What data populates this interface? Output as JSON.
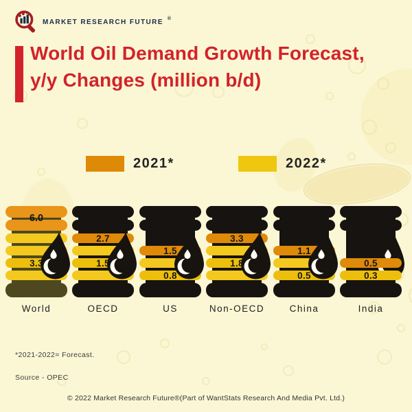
{
  "logo": {
    "brand": "MARKET RESEARCH FUTURE",
    "reg": "®"
  },
  "title": {
    "line1": "World Oil Demand Growth Forecast,",
    "line2": "y/y Changes (million b/d)"
  },
  "legend": [
    {
      "label": "2021*",
      "color": "#DE8A07"
    },
    {
      "label": "2022*",
      "color": "#EFC70E"
    }
  ],
  "chart_data": {
    "type": "bar",
    "title": "World Oil Demand Growth Forecast, y/y Changes (million b/d)",
    "unit": "million b/d",
    "categories": [
      "World",
      "OECD",
      "US",
      "Non-OECD",
      "China",
      "India"
    ],
    "series": [
      {
        "name": "2021*",
        "values": [
          6.0,
          2.7,
          1.5,
          3.3,
          1.1,
          0.5
        ]
      },
      {
        "name": "2022*",
        "values": [
          3.3,
          1.5,
          0.8,
          1.8,
          0.5,
          0.3
        ]
      }
    ],
    "legend_position": "top",
    "grid": false,
    "source": "OPEC"
  },
  "barrels": [
    {
      "category": "World",
      "cap_value": "6.0",
      "bands": [
        {
          "c": "yellow_light"
        },
        {
          "c": "yellow_light"
        },
        {
          "c": "yellow",
          "v": "3.3"
        },
        {
          "c": "yellow_light"
        }
      ]
    },
    {
      "category": "OECD",
      "bands": [
        {
          "c": "orange",
          "v": "2.7"
        },
        {
          "c": "yellow_light"
        },
        {
          "c": "yellow",
          "v": "1.5"
        },
        {
          "c": "yellow_light"
        }
      ]
    },
    {
      "category": "US",
      "bands": [
        null,
        {
          "c": "orange",
          "v": "1.5"
        },
        {
          "c": "yellow_light"
        },
        {
          "c": "yellow",
          "v": "0.8"
        }
      ]
    },
    {
      "category": "Non-OECD",
      "bands": [
        {
          "c": "orange",
          "v": "3.3"
        },
        {
          "c": "yellow_light"
        },
        {
          "c": "yellow",
          "v": "1.8"
        },
        {
          "c": "yellow_light"
        }
      ]
    },
    {
      "category": "China",
      "bands": [
        null,
        {
          "c": "orange",
          "v": "1.1"
        },
        {
          "c": "yellow_light"
        },
        {
          "c": "yellow",
          "v": "0.5"
        }
      ]
    },
    {
      "category": "India",
      "bands": [
        null,
        null,
        {
          "c": "orange",
          "v": "0.5"
        },
        {
          "c": "yellow",
          "v": "0.3"
        }
      ]
    }
  ],
  "footnotes": {
    "forecast": "*2021-2022= Forecast.",
    "source": "Source - OPEC"
  },
  "copyright": "© 2022 Market Research Future®(Part of WantStats Research And Media Pvt. Ltd.)",
  "colors": {
    "background": "#FBF7D5",
    "title_red": "#D2232A",
    "bar_2021_orange": "#DF8A08",
    "bar_2022_yellow": "#EDBF0C",
    "band_yellow_light": "#F3C91F",
    "barrel_black": "#171310",
    "world_body_olive": "#4D481F",
    "world_cap_orange": "#E8951A",
    "drop_black": "#17130E",
    "text_dark": "#1d1d1d",
    "brand_navy": "#1C2B4A",
    "brand_red": "#A32026"
  }
}
